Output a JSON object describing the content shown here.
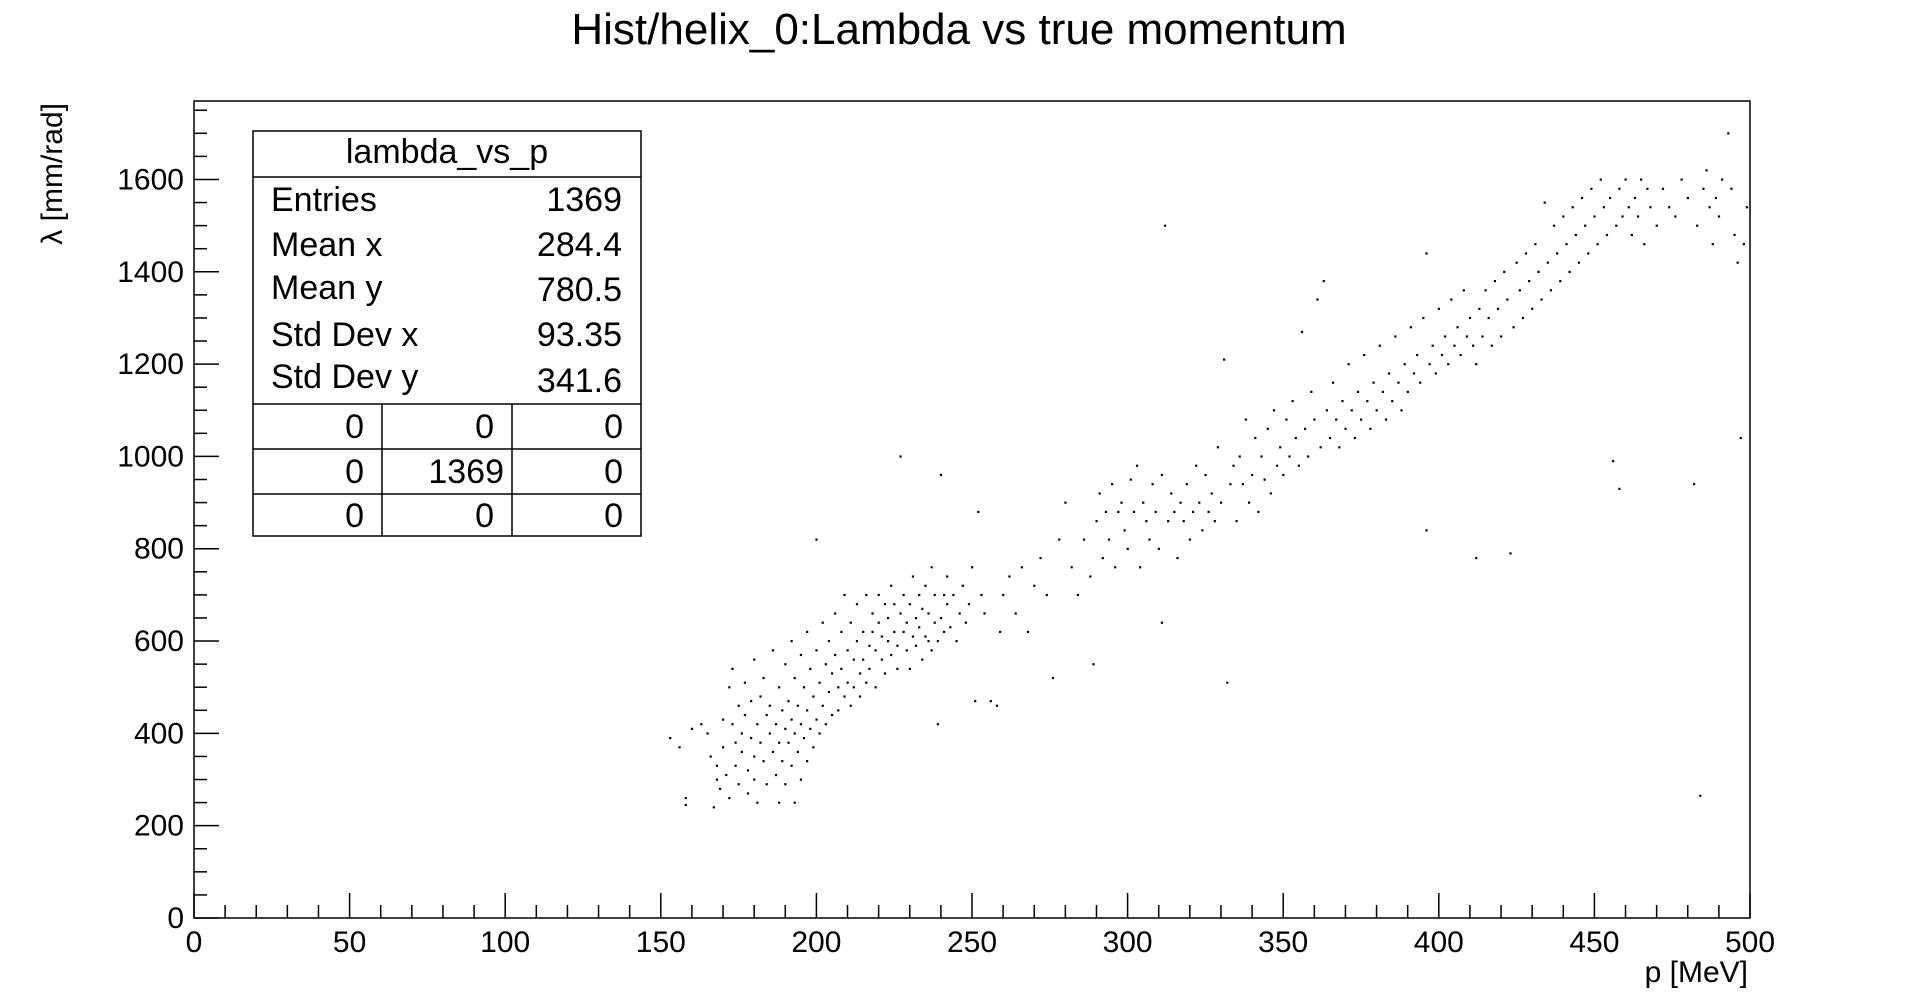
{
  "chart_data": {
    "type": "scatter",
    "title": "Hist/helix_0:Lambda vs true momentum",
    "xlabel": "p [MeV]",
    "ylabel": "λ [mm/rad]",
    "xlim": [
      0,
      500
    ],
    "ylim": [
      0,
      1770
    ],
    "x_ticks": [
      "0",
      "50",
      "100",
      "150",
      "200",
      "250",
      "300",
      "350",
      "400",
      "450",
      "500"
    ],
    "y_ticks": [
      "0",
      "200",
      "400",
      "600",
      "800",
      "1000",
      "1200",
      "1400",
      "1600"
    ],
    "grid": false,
    "legend": "none",
    "marker_color": "#000000",
    "stats_box": {
      "name": "lambda_vs_p",
      "placement": "top-left",
      "rows": [
        {
          "label": "Entries",
          "value": "1369"
        },
        {
          "label": "Mean x",
          "value": "284.4"
        },
        {
          "label": "Mean y",
          "value": "780.5"
        },
        {
          "label": "Std Dev x",
          "value": "93.35"
        },
        {
          "label": "Std Dev y",
          "value": "341.6"
        }
      ],
      "overflow_grid": [
        [
          "0",
          "0",
          "0"
        ],
        [
          "0",
          "1369",
          "0"
        ],
        [
          "0",
          "0",
          "0"
        ]
      ]
    },
    "points": [
      [
        153,
        390
      ],
      [
        156,
        370
      ],
      [
        158,
        245
      ],
      [
        158,
        260
      ],
      [
        160,
        410
      ],
      [
        163,
        420
      ],
      [
        165,
        400
      ],
      [
        166,
        350
      ],
      [
        167,
        240
      ],
      [
        168,
        330
      ],
      [
        168,
        300
      ],
      [
        169,
        280
      ],
      [
        170,
        430
      ],
      [
        170,
        370
      ],
      [
        171,
        310
      ],
      [
        172,
        260
      ],
      [
        172,
        500
      ],
      [
        173,
        540
      ],
      [
        173,
        420
      ],
      [
        174,
        380
      ],
      [
        174,
        330
      ],
      [
        175,
        460
      ],
      [
        175,
        290
      ],
      [
        176,
        400
      ],
      [
        176,
        360
      ],
      [
        177,
        510
      ],
      [
        177,
        440
      ],
      [
        178,
        320
      ],
      [
        178,
        270
      ],
      [
        179,
        470
      ],
      [
        179,
        390
      ],
      [
        180,
        350
      ],
      [
        180,
        560
      ],
      [
        180,
        300
      ],
      [
        181,
        420
      ],
      [
        181,
        250
      ],
      [
        182,
        480
      ],
      [
        182,
        380
      ],
      [
        183,
        340
      ],
      [
        183,
        520
      ],
      [
        184,
        440
      ],
      [
        184,
        290
      ],
      [
        185,
        400
      ],
      [
        185,
        460
      ],
      [
        186,
        360
      ],
      [
        186,
        580
      ],
      [
        187,
        310
      ],
      [
        187,
        420
      ],
      [
        188,
        500
      ],
      [
        188,
        380
      ],
      [
        188,
        250
      ],
      [
        189,
        450
      ],
      [
        189,
        340
      ],
      [
        190,
        550
      ],
      [
        190,
        410
      ],
      [
        190,
        290
      ],
      [
        191,
        470
      ],
      [
        191,
        380
      ],
      [
        192,
        600
      ],
      [
        192,
        430
      ],
      [
        192,
        330
      ],
      [
        193,
        520
      ],
      [
        193,
        400
      ],
      [
        193,
        250
      ],
      [
        194,
        460
      ],
      [
        194,
        360
      ],
      [
        195,
        570
      ],
      [
        195,
        420
      ],
      [
        195,
        300
      ],
      [
        196,
        500
      ],
      [
        196,
        390
      ],
      [
        197,
        620
      ],
      [
        197,
        450
      ],
      [
        197,
        340
      ],
      [
        198,
        540
      ],
      [
        198,
        410
      ],
      [
        199,
        480
      ],
      [
        199,
        370
      ],
      [
        200,
        580
      ],
      [
        200,
        430
      ],
      [
        200,
        820
      ],
      [
        201,
        510
      ],
      [
        201,
        400
      ],
      [
        202,
        640
      ],
      [
        202,
        460
      ],
      [
        203,
        550
      ],
      [
        203,
        420
      ],
      [
        204,
        600
      ],
      [
        204,
        490
      ],
      [
        205,
        530
      ],
      [
        205,
        440
      ],
      [
        206,
        660
      ],
      [
        206,
        570
      ],
      [
        207,
        500
      ],
      [
        207,
        450
      ],
      [
        208,
        620
      ],
      [
        208,
        540
      ],
      [
        209,
        480
      ],
      [
        209,
        700
      ],
      [
        210,
        580
      ],
      [
        210,
        510
      ],
      [
        211,
        640
      ],
      [
        211,
        460
      ],
      [
        212,
        560
      ],
      [
        212,
        500
      ],
      [
        213,
        680
      ],
      [
        213,
        600
      ],
      [
        214,
        530
      ],
      [
        214,
        480
      ],
      [
        215,
        620
      ],
      [
        215,
        560
      ],
      [
        216,
        700
      ],
      [
        216,
        510
      ],
      [
        217,
        590
      ],
      [
        217,
        540
      ],
      [
        218,
        660
      ],
      [
        218,
        620
      ],
      [
        219,
        500
      ],
      [
        219,
        580
      ],
      [
        220,
        640
      ],
      [
        220,
        700
      ],
      [
        221,
        560
      ],
      [
        221,
        610
      ],
      [
        222,
        680
      ],
      [
        222,
        530
      ],
      [
        223,
        600
      ],
      [
        223,
        650
      ],
      [
        224,
        720
      ],
      [
        224,
        570
      ],
      [
        225,
        620
      ],
      [
        225,
        680
      ],
      [
        226,
        590
      ],
      [
        226,
        540
      ],
      [
        227,
        660
      ],
      [
        227,
        1000
      ],
      [
        228,
        620
      ],
      [
        228,
        700
      ],
      [
        229,
        580
      ],
      [
        229,
        640
      ],
      [
        230,
        680
      ],
      [
        230,
        540
      ],
      [
        231,
        740
      ],
      [
        231,
        610
      ],
      [
        232,
        650
      ],
      [
        232,
        590
      ],
      [
        233,
        700
      ],
      [
        233,
        630
      ],
      [
        234,
        560
      ],
      [
        234,
        670
      ],
      [
        235,
        720
      ],
      [
        235,
        610
      ],
      [
        236,
        600
      ],
      [
        236,
        660
      ],
      [
        237,
        760
      ],
      [
        237,
        580
      ],
      [
        238,
        640
      ],
      [
        238,
        700
      ],
      [
        239,
        420
      ],
      [
        239,
        600
      ],
      [
        240,
        960
      ],
      [
        240,
        650
      ],
      [
        241,
        700
      ],
      [
        241,
        620
      ],
      [
        242,
        740
      ],
      [
        242,
        680
      ],
      [
        243,
        630
      ],
      [
        244,
        700
      ],
      [
        245,
        600
      ],
      [
        246,
        660
      ],
      [
        247,
        720
      ],
      [
        248,
        640
      ],
      [
        249,
        680
      ],
      [
        250,
        760
      ],
      [
        251,
        470
      ],
      [
        252,
        880
      ],
      [
        253,
        700
      ],
      [
        254,
        660
      ],
      [
        256,
        470
      ],
      [
        258,
        460
      ],
      [
        259,
        620
      ],
      [
        260,
        700
      ],
      [
        262,
        740
      ],
      [
        264,
        660
      ],
      [
        266,
        760
      ],
      [
        268,
        620
      ],
      [
        270,
        720
      ],
      [
        272,
        780
      ],
      [
        274,
        700
      ],
      [
        276,
        520
      ],
      [
        278,
        820
      ],
      [
        280,
        900
      ],
      [
        282,
        760
      ],
      [
        284,
        700
      ],
      [
        286,
        820
      ],
      [
        288,
        740
      ],
      [
        289,
        550
      ],
      [
        290,
        860
      ],
      [
        291,
        920
      ],
      [
        292,
        780
      ],
      [
        293,
        880
      ],
      [
        294,
        820
      ],
      [
        295,
        940
      ],
      [
        296,
        760
      ],
      [
        297,
        880
      ],
      [
        298,
        900
      ],
      [
        299,
        840
      ],
      [
        300,
        800
      ],
      [
        301,
        950
      ],
      [
        302,
        880
      ],
      [
        303,
        980
      ],
      [
        304,
        760
      ],
      [
        305,
        900
      ],
      [
        306,
        860
      ],
      [
        307,
        820
      ],
      [
        308,
        940
      ],
      [
        309,
        880
      ],
      [
        310,
        800
      ],
      [
        311,
        640
      ],
      [
        311,
        960
      ],
      [
        312,
        1500
      ],
      [
        313,
        860
      ],
      [
        314,
        920
      ],
      [
        315,
        880
      ],
      [
        316,
        780
      ],
      [
        317,
        900
      ],
      [
        318,
        860
      ],
      [
        319,
        940
      ],
      [
        320,
        820
      ],
      [
        321,
        880
      ],
      [
        322,
        980
      ],
      [
        323,
        900
      ],
      [
        324,
        840
      ],
      [
        325,
        960
      ],
      [
        326,
        880
      ],
      [
        327,
        920
      ],
      [
        328,
        860
      ],
      [
        329,
        1020
      ],
      [
        330,
        900
      ],
      [
        331,
        1210
      ],
      [
        332,
        510
      ],
      [
        333,
        940
      ],
      [
        334,
        980
      ],
      [
        335,
        860
      ],
      [
        336,
        1000
      ],
      [
        337,
        940
      ],
      [
        338,
        1080
      ],
      [
        339,
        900
      ],
      [
        340,
        960
      ],
      [
        341,
        1040
      ],
      [
        342,
        880
      ],
      [
        343,
        1000
      ],
      [
        344,
        950
      ],
      [
        345,
        1060
      ],
      [
        346,
        920
      ],
      [
        347,
        1100
      ],
      [
        348,
        980
      ],
      [
        349,
        1020
      ],
      [
        350,
        960
      ],
      [
        351,
        1080
      ],
      [
        352,
        1000
      ],
      [
        353,
        1120
      ],
      [
        354,
        1040
      ],
      [
        355,
        980
      ],
      [
        356,
        1270
      ],
      [
        357,
        1060
      ],
      [
        358,
        1000
      ],
      [
        359,
        1140
      ],
      [
        360,
        1080
      ],
      [
        361,
        1340
      ],
      [
        362,
        1020
      ],
      [
        363,
        1380
      ],
      [
        364,
        1100
      ],
      [
        365,
        1040
      ],
      [
        366,
        1160
      ],
      [
        367,
        1080
      ],
      [
        368,
        1020
      ],
      [
        369,
        1120
      ],
      [
        370,
        1060
      ],
      [
        371,
        1200
      ],
      [
        372,
        1100
      ],
      [
        373,
        1040
      ],
      [
        374,
        1140
      ],
      [
        375,
        1080
      ],
      [
        376,
        1220
      ],
      [
        377,
        1120
      ],
      [
        378,
        1060
      ],
      [
        379,
        1160
      ],
      [
        380,
        1100
      ],
      [
        381,
        1240
      ],
      [
        382,
        1140
      ],
      [
        383,
        1080
      ],
      [
        384,
        1180
      ],
      [
        385,
        1120
      ],
      [
        386,
        1260
      ],
      [
        387,
        1160
      ],
      [
        388,
        1100
      ],
      [
        389,
        1200
      ],
      [
        390,
        1140
      ],
      [
        391,
        1280
      ],
      [
        392,
        1180
      ],
      [
        393,
        1220
      ],
      [
        394,
        1160
      ],
      [
        395,
        1300
      ],
      [
        396,
        1440
      ],
      [
        396,
        840
      ],
      [
        397,
        1200
      ],
      [
        398,
        1240
      ],
      [
        399,
        1180
      ],
      [
        400,
        1320
      ],
      [
        401,
        1220
      ],
      [
        402,
        1260
      ],
      [
        403,
        1200
      ],
      [
        404,
        1340
      ],
      [
        405,
        1240
      ],
      [
        406,
        1280
      ],
      [
        407,
        1220
      ],
      [
        408,
        1360
      ],
      [
        409,
        1260
      ],
      [
        410,
        1300
      ],
      [
        411,
        1240
      ],
      [
        412,
        780
      ],
      [
        412,
        1200
      ],
      [
        413,
        1320
      ],
      [
        414,
        1260
      ],
      [
        415,
        1360
      ],
      [
        416,
        1300
      ],
      [
        417,
        1240
      ],
      [
        418,
        1380
      ],
      [
        419,
        1320
      ],
      [
        420,
        1260
      ],
      [
        421,
        1400
      ],
      [
        422,
        1340
      ],
      [
        423,
        790
      ],
      [
        424,
        1280
      ],
      [
        425,
        1420
      ],
      [
        426,
        1360
      ],
      [
        427,
        1300
      ],
      [
        428,
        1440
      ],
      [
        429,
        1380
      ],
      [
        430,
        1320
      ],
      [
        431,
        1460
      ],
      [
        432,
        1400
      ],
      [
        433,
        1340
      ],
      [
        434,
        1550
      ],
      [
        435,
        1420
      ],
      [
        436,
        1360
      ],
      [
        437,
        1500
      ],
      [
        438,
        1440
      ],
      [
        439,
        1380
      ],
      [
        440,
        1520
      ],
      [
        441,
        1460
      ],
      [
        442,
        1400
      ],
      [
        443,
        1540
      ],
      [
        444,
        1480
      ],
      [
        445,
        1420
      ],
      [
        446,
        1560
      ],
      [
        447,
        1500
      ],
      [
        448,
        1440
      ],
      [
        449,
        1580
      ],
      [
        450,
        1520
      ],
      [
        451,
        1460
      ],
      [
        452,
        1600
      ],
      [
        453,
        1540
      ],
      [
        454,
        1480
      ],
      [
        455,
        1560
      ],
      [
        456,
        990
      ],
      [
        457,
        1500
      ],
      [
        458,
        930
      ],
      [
        458,
        1580
      ],
      [
        459,
        1520
      ],
      [
        460,
        1600
      ],
      [
        461,
        1540
      ],
      [
        462,
        1480
      ],
      [
        463,
        1560
      ],
      [
        464,
        1520
      ],
      [
        465,
        1600
      ],
      [
        466,
        1460
      ],
      [
        467,
        1580
      ],
      [
        468,
        1540
      ],
      [
        470,
        1500
      ],
      [
        472,
        1580
      ],
      [
        474,
        1540
      ],
      [
        476,
        1520
      ],
      [
        478,
        1600
      ],
      [
        480,
        1560
      ],
      [
        482,
        940
      ],
      [
        483,
        1500
      ],
      [
        484,
        265
      ],
      [
        485,
        1580
      ],
      [
        486,
        1620
      ],
      [
        487,
        1540
      ],
      [
        488,
        1460
      ],
      [
        489,
        1560
      ],
      [
        490,
        1520
      ],
      [
        491,
        1600
      ],
      [
        493,
        1700
      ],
      [
        494,
        1580
      ],
      [
        495,
        1480
      ],
      [
        496,
        1420
      ],
      [
        497,
        1040
      ],
      [
        498,
        1460
      ],
      [
        499,
        1540
      ]
    ]
  }
}
